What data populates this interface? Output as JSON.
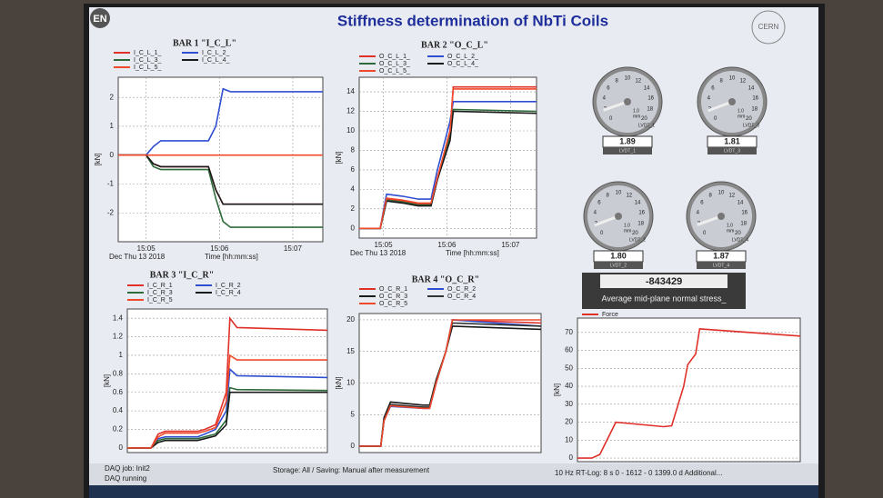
{
  "header": {
    "logo": "EN",
    "title": "Stiffness determination of NbTi Coils",
    "org": "CERN"
  },
  "chart_data": [
    {
      "type": "line",
      "title": "BAR 1 \"I_C_L\"",
      "ylabel": "[kN]",
      "xlabel_date": "Dec Thu 13 2018",
      "xlabel": "Time [hh:mm:ss]",
      "x": [
        4.62,
        5.0,
        5.1,
        5.2,
        5.85,
        5.95,
        6.05,
        6.15,
        7.41
      ],
      "xlim": [
        4.62,
        7.41
      ],
      "xticks": [
        {
          "value": 5,
          "label": "15:05"
        },
        {
          "value": 6,
          "label": "15:06"
        },
        {
          "value": 7,
          "label": "15:07"
        }
      ],
      "ylim": [
        -3,
        2.7
      ],
      "yticks": [
        -2,
        -1,
        0,
        1,
        2
      ],
      "grid": true,
      "series": [
        {
          "name": "I_C_L_1_",
          "color": "#e0302a",
          "values": [
            0,
            0,
            -0.3,
            -0.4,
            -0.4,
            -1.2,
            -1.7,
            -1.7,
            -1.7
          ]
        },
        {
          "name": "I_C_L_2_",
          "color": "#2f4fd0",
          "values": [
            0,
            0,
            0.3,
            0.5,
            0.5,
            1.0,
            2.3,
            2.2,
            2.2
          ]
        },
        {
          "name": "I_C_L_3_",
          "color": "#2e6b3a",
          "values": [
            0,
            0,
            -0.4,
            -0.5,
            -0.5,
            -1.5,
            -2.3,
            -2.5,
            -2.5
          ]
        },
        {
          "name": "I_C_L_4_",
          "color": "#1a1a1a",
          "values": [
            0,
            0,
            -0.3,
            -0.4,
            -0.4,
            -1.2,
            -1.7,
            -1.7,
            -1.7
          ]
        },
        {
          "name": "I_C_L_5_",
          "color": "#f04a2a",
          "values": [
            0,
            0,
            0,
            0,
            0,
            0,
            0,
            0,
            0
          ]
        }
      ]
    },
    {
      "type": "line",
      "title": "BAR 2 \"O_C_L\"",
      "ylabel": "[kN]",
      "xlabel_date": "Dec Thu 13 2018",
      "xlabel": "Time [hh:mm:ss]",
      "x": [
        4.62,
        4.95,
        5.0,
        5.05,
        5.3,
        5.55,
        5.65,
        5.75,
        5.85,
        6.05,
        6.1,
        7.41
      ],
      "xlim": [
        4.62,
        7.41
      ],
      "xticks": [
        {
          "value": 5,
          "label": "15:05"
        },
        {
          "value": 6,
          "label": "15:06"
        },
        {
          "value": 7,
          "label": "15:07"
        }
      ],
      "ylim": [
        -1,
        15.5
      ],
      "yticks": [
        0,
        2,
        4,
        6,
        8,
        10,
        12,
        14
      ],
      "grid": true,
      "series": [
        {
          "name": "O_C_L_1_",
          "color": "#e0302a",
          "values": [
            0,
            0,
            1.5,
            3,
            2.8,
            2.5,
            2.5,
            2.5,
            5,
            10,
            14.5,
            14.5
          ]
        },
        {
          "name": "O_C_L_2_",
          "color": "#2f4fd0",
          "values": [
            0,
            0,
            1.8,
            3.5,
            3.3,
            3.0,
            3.0,
            3.0,
            6,
            11,
            13,
            13
          ]
        },
        {
          "name": "O_C_L_3_",
          "color": "#2e6b3a",
          "values": [
            0,
            0,
            1.4,
            2.9,
            2.7,
            2.4,
            2.4,
            2.4,
            5,
            9.5,
            12.2,
            12
          ]
        },
        {
          "name": "O_C_L_4_",
          "color": "#1a1a1a",
          "values": [
            0,
            0,
            1.4,
            2.8,
            2.6,
            2.3,
            2.3,
            2.3,
            5,
            9,
            12,
            11.8
          ]
        },
        {
          "name": "O_C_L_5_",
          "color": "#f04a2a",
          "values": [
            0,
            0,
            1.6,
            3.1,
            2.9,
            2.6,
            2.6,
            2.6,
            5.2,
            10,
            14.3,
            14.3
          ]
        }
      ]
    },
    {
      "type": "line",
      "title": "BAR 3 \"I_C_R\"",
      "ylabel": "[kN]",
      "x": [
        4.62,
        4.95,
        5.05,
        5.15,
        5.6,
        5.7,
        5.85,
        6.0,
        6.05,
        6.15,
        7.41
      ],
      "xlim": [
        4.62,
        7.41
      ],
      "ylim": [
        -0.05,
        1.5
      ],
      "yticks": [
        0,
        0.2,
        0.4,
        0.6,
        0.8,
        1,
        1.2,
        1.4
      ],
      "grid": true,
      "series": [
        {
          "name": "I_C_R_1",
          "color": "#e0302a",
          "values": [
            0,
            0,
            0.15,
            0.18,
            0.18,
            0.2,
            0.25,
            0.6,
            1.4,
            1.3,
            1.27
          ]
        },
        {
          "name": "I_C_R_2",
          "color": "#2f4fd0",
          "values": [
            0,
            0,
            0.1,
            0.12,
            0.12,
            0.15,
            0.2,
            0.4,
            0.85,
            0.78,
            0.76
          ]
        },
        {
          "name": "I_C_R_3",
          "color": "#2e6b3a",
          "values": [
            0,
            0,
            0.08,
            0.1,
            0.1,
            0.12,
            0.15,
            0.3,
            0.65,
            0.63,
            0.62
          ]
        },
        {
          "name": "I_C_R_4",
          "color": "#1a1a1a",
          "values": [
            0,
            0,
            0.06,
            0.08,
            0.08,
            0.1,
            0.13,
            0.25,
            0.6,
            0.6,
            0.6
          ]
        },
        {
          "name": "I_C_R_5",
          "color": "#f04a2a",
          "values": [
            0,
            0,
            0.12,
            0.16,
            0.16,
            0.18,
            0.22,
            0.5,
            1.0,
            0.95,
            0.95
          ]
        }
      ]
    },
    {
      "type": "line",
      "title": "BAR 4 \"O_C_R\"",
      "ylabel": "[kN]",
      "x": [
        4.62,
        4.95,
        5.0,
        5.1,
        5.6,
        5.7,
        5.8,
        5.95,
        6.05,
        7.41
      ],
      "xlim": [
        4.62,
        7.41
      ],
      "ylim": [
        -1,
        21
      ],
      "yticks": [
        0,
        5,
        10,
        15,
        20
      ],
      "grid": true,
      "series": [
        {
          "name": "O_C_R_1",
          "color": "#e0302a",
          "values": [
            0,
            0,
            4,
            6.5,
            6,
            6,
            10,
            15,
            20,
            19.5
          ]
        },
        {
          "name": "O_C_R_2",
          "color": "#2f4fd0",
          "values": [
            0,
            0,
            4,
            6.3,
            6,
            6,
            10,
            15,
            20,
            19
          ]
        },
        {
          "name": "O_C_R_3",
          "color": "#1a1a1a",
          "values": [
            0,
            0,
            4.5,
            7,
            6.5,
            6.5,
            10.5,
            15,
            19,
            18.5
          ]
        },
        {
          "name": "O_C_R_4",
          "color": "#333333",
          "values": [
            0,
            0,
            4,
            6.6,
            6.2,
            6.2,
            10.2,
            15,
            19.5,
            19
          ]
        },
        {
          "name": "O_C_R_5",
          "color": "#f04a2a",
          "values": [
            0,
            0,
            4,
            6.4,
            6,
            6,
            10,
            15,
            20,
            20
          ]
        }
      ]
    },
    {
      "type": "line",
      "ylabel": "[kN]",
      "x": [
        4.62,
        4.8,
        4.9,
        5.1,
        5.7,
        5.8,
        5.95,
        6.0,
        6.1,
        6.15,
        7.41
      ],
      "xlim": [
        4.62,
        7.41
      ],
      "ylim": [
        -2,
        78
      ],
      "yticks": [
        0,
        10,
        20,
        30,
        40,
        50,
        60,
        70
      ],
      "grid": true,
      "series": [
        {
          "name": "Force",
          "color": "#e0302a",
          "values": [
            0,
            0,
            2,
            20,
            17.5,
            18,
            40,
            52,
            58,
            72,
            68
          ]
        }
      ]
    }
  ],
  "gauges": {
    "dial_ticks": [
      0,
      2,
      4,
      6,
      8,
      10,
      12,
      14,
      16,
      18,
      20
    ],
    "center_value": "1.0",
    "unit": "mm",
    "items": [
      {
        "name": "LVDT_1",
        "reading": "1.89"
      },
      {
        "name": "LVDT_3",
        "reading": "1.81"
      },
      {
        "name": "LVDT_2",
        "reading": "1.80"
      },
      {
        "name": "LVDT_4",
        "reading": "1.87"
      }
    ]
  },
  "stress": {
    "value": "-843429",
    "label": "Average mid-plane normal stress_"
  },
  "status_bar": {
    "left": "DAQ job: Init2",
    "left2": "DAQ running",
    "storage": "Storage: All / Saving: Manual after measurement",
    "right": "10 Hz  RT-Log: 8 s  0 - 1612 - 0  1399.0 d  Additional..."
  }
}
